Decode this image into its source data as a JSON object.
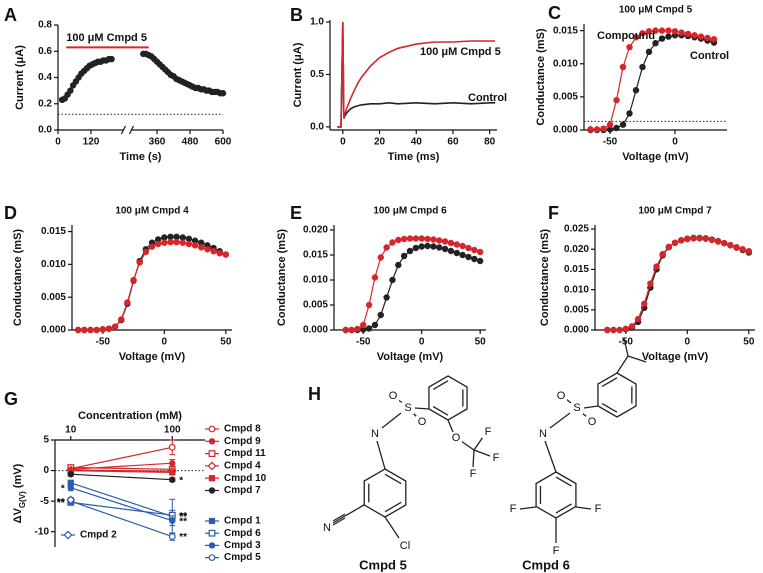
{
  "chart_data": [
    {
      "panel": "A",
      "type": "scatter",
      "xlabel": "Time (s)",
      "ylabel": "Current (μA)",
      "xbreak": true,
      "x": [
        15,
        25,
        35,
        45,
        55,
        65,
        75,
        85,
        95,
        105,
        115,
        125,
        135,
        145,
        155,
        165,
        175,
        185,
        195,
        310,
        320,
        330,
        340,
        350,
        360,
        370,
        380,
        390,
        400,
        410,
        420,
        430,
        440,
        450,
        460,
        470,
        480,
        490,
        500,
        510,
        520,
        530,
        540,
        550,
        560,
        570,
        580,
        590,
        600
      ],
      "series": [
        {
          "color": "#222222",
          "values": [
            0.23,
            0.24,
            0.27,
            0.3,
            0.34,
            0.37,
            0.4,
            0.43,
            0.45,
            0.47,
            0.49,
            0.5,
            0.51,
            0.52,
            0.52,
            0.53,
            0.53,
            0.54,
            0.54,
            0.58,
            0.58,
            0.57,
            0.56,
            0.54,
            0.52,
            0.5,
            0.48,
            0.46,
            0.44,
            0.42,
            0.41,
            0.39,
            0.38,
            0.37,
            0.36,
            0.35,
            0.34,
            0.33,
            0.32,
            0.32,
            0.31,
            0.31,
            0.3,
            0.3,
            0.29,
            0.29,
            0.29,
            0.28,
            0.28
          ]
        }
      ],
      "xlim": [
        0,
        600
      ],
      "xticks": [
        0,
        120,
        360,
        480,
        600
      ],
      "ylim": [
        0,
        0.8
      ],
      "yticks": [
        {
          "value": 0,
          "label": "0.0"
        },
        0.2,
        0.4,
        0.6,
        0.8
      ],
      "hline": 0.12,
      "annotation": {
        "text": "100 μM Cmpd 5",
        "x": [
          30,
          330
        ],
        "y": 0.63,
        "color": "#d7262b"
      }
    },
    {
      "panel": "B",
      "type": "line",
      "xlabel": "Time (ms)",
      "ylabel": "Current (μA)",
      "x": [
        -3,
        -1,
        0,
        0.5,
        1,
        2,
        4,
        6,
        8,
        10,
        15,
        20,
        25,
        30,
        40,
        50,
        60,
        70,
        80,
        83
      ],
      "series": [
        {
          "name": "Control",
          "color": "#222222",
          "values": [
            0,
            0,
            1.0,
            0.08,
            0.1,
            0.13,
            0.17,
            0.19,
            0.2,
            0.21,
            0.22,
            0.22,
            0.23,
            0.22,
            0.23,
            0.22,
            0.23,
            0.22,
            0.23,
            0.23
          ]
        },
        {
          "name": "100 μM Cmpd 5",
          "color": "#d7262b",
          "values": [
            0,
            0,
            1.0,
            0.08,
            0.12,
            0.17,
            0.26,
            0.34,
            0.41,
            0.47,
            0.58,
            0.66,
            0.71,
            0.75,
            0.79,
            0.81,
            0.81,
            0.82,
            0.82,
            0.82
          ]
        }
      ],
      "xlim": [
        -7,
        84
      ],
      "xticks": [
        0,
        20,
        40,
        60,
        80
      ],
      "ylim": [
        -0.03,
        1.02
      ],
      "yticks": [
        {
          "value": 0,
          "label": "0.0"
        },
        0.5,
        {
          "value": 1,
          "label": "1.0"
        }
      ]
    },
    {
      "panel": "C",
      "type": "scatter",
      "connect": true,
      "title": "100 μM Cmpd 5",
      "xlabel": "Voltage (mV)",
      "ylabel": "Conductance (mS)",
      "x": [
        -65,
        -60,
        -55,
        -50,
        -45,
        -40,
        -35,
        -30,
        -25,
        -20,
        -15,
        -10,
        -5,
        0,
        5,
        10,
        15,
        20,
        25,
        30
      ],
      "series": [
        {
          "name": "Control",
          "color": "#222222",
          "values": [
            0,
            0,
            0,
            0.0001,
            0.0003,
            0.0008,
            0.0025,
            0.006,
            0.0095,
            0.0118,
            0.0131,
            0.0138,
            0.0141,
            0.0143,
            0.0143,
            0.0142,
            0.014,
            0.0138,
            0.0135,
            0.0132
          ]
        },
        {
          "name": "Compound",
          "color": "#d7262b",
          "values": [
            0.0001,
            0.0001,
            0.0002,
            0.0008,
            0.0045,
            0.0095,
            0.0125,
            0.014,
            0.0146,
            0.0149,
            0.015,
            0.015,
            0.015,
            0.0149,
            0.0147,
            0.0145,
            0.0143,
            0.0141,
            0.0139,
            0.0137
          ]
        }
      ],
      "xlim": [
        -70,
        40
      ],
      "xticks": [
        -50,
        0
      ],
      "ylim": [
        0,
        0.016
      ],
      "yticks": [
        {
          "value": 0,
          "label": "0.000"
        },
        0.005,
        {
          "value": 0.01,
          "label": "0.010"
        },
        0.015
      ],
      "hline": 0.0013
    },
    {
      "panel": "D",
      "type": "scatter",
      "connect": true,
      "title": "100 μM Cmpd 4",
      "xlabel": "Voltage (mV)",
      "ylabel": "Conductance (mS)",
      "x": [
        -70,
        -65,
        -60,
        -55,
        -50,
        -45,
        -40,
        -35,
        -30,
        -25,
        -20,
        -15,
        -10,
        -5,
        0,
        5,
        10,
        15,
        20,
        25,
        30,
        35,
        40,
        45,
        50
      ],
      "series": [
        {
          "color": "#222222",
          "values": [
            0,
            0,
            0,
            0,
            0.0001,
            0.0002,
            0.0005,
            0.0015,
            0.004,
            0.0075,
            0.0105,
            0.0123,
            0.0133,
            0.0138,
            0.0141,
            0.0142,
            0.0142,
            0.0141,
            0.0139,
            0.0136,
            0.0133,
            0.0129,
            0.0125,
            0.012,
            0.0115
          ]
        },
        {
          "color": "#d7262b",
          "values": [
            0,
            0,
            0,
            0,
            0.0001,
            0.0002,
            0.0005,
            0.0016,
            0.0042,
            0.0076,
            0.0103,
            0.0119,
            0.0127,
            0.0131,
            0.0133,
            0.0134,
            0.0134,
            0.0133,
            0.0131,
            0.0129,
            0.0126,
            0.0123,
            0.012,
            0.0117,
            0.0115
          ]
        }
      ],
      "xlim": [
        -75,
        55
      ],
      "xticks": [
        -50,
        0,
        50
      ],
      "ylim": [
        0,
        0.016
      ],
      "yticks": [
        {
          "value": 0,
          "label": "0.000"
        },
        0.005,
        {
          "value": 0.01,
          "label": "0.010"
        },
        0.015
      ]
    },
    {
      "panel": "E",
      "type": "scatter",
      "connect": true,
      "title": "100 μM Cmpd 6",
      "xlabel": "Voltage (mV)",
      "ylabel": "Conductance (mS)",
      "x": [
        -65,
        -60,
        -55,
        -50,
        -45,
        -40,
        -35,
        -30,
        -25,
        -20,
        -15,
        -10,
        -5,
        0,
        5,
        10,
        15,
        20,
        25,
        30,
        35,
        40,
        45,
        50
      ],
      "series": [
        {
          "color": "#222222",
          "values": [
            0,
            0,
            0,
            0.0001,
            0.0003,
            0.001,
            0.003,
            0.0065,
            0.01,
            0.013,
            0.0148,
            0.0158,
            0.0164,
            0.0167,
            0.0168,
            0.0167,
            0.0165,
            0.0162,
            0.0158,
            0.0154,
            0.015,
            0.0146,
            0.0142,
            0.0138
          ]
        },
        {
          "color": "#d7262b",
          "values": [
            0,
            0,
            0.0002,
            0.001,
            0.005,
            0.0105,
            0.0145,
            0.0165,
            0.0175,
            0.018,
            0.0182,
            0.0183,
            0.0183,
            0.0183,
            0.0182,
            0.0181,
            0.0179,
            0.0177,
            0.0174,
            0.0171,
            0.0168,
            0.0164,
            0.016,
            0.0156
          ]
        }
      ],
      "xlim": [
        -75,
        55
      ],
      "xticks": [
        -50,
        0,
        50
      ],
      "ylim": [
        0,
        0.021
      ],
      "yticks": [
        {
          "value": 0,
          "label": "0.000"
        },
        0.005,
        {
          "value": 0.01,
          "label": "0.010"
        },
        0.015,
        {
          "value": 0.02,
          "label": "0.020"
        }
      ]
    },
    {
      "panel": "F",
      "type": "scatter",
      "connect": true,
      "title": "100 μM Cmpd 7",
      "xlabel": "Voltage (mV)",
      "ylabel": "Conductance (mS)",
      "x": [
        -65,
        -60,
        -55,
        -50,
        -45,
        -40,
        -35,
        -30,
        -25,
        -20,
        -15,
        -10,
        -5,
        0,
        5,
        10,
        15,
        20,
        25,
        30,
        35,
        40,
        45,
        50
      ],
      "series": [
        {
          "color": "#222222",
          "values": [
            0,
            0,
            0,
            0.0002,
            0.0006,
            0.002,
            0.0055,
            0.0105,
            0.015,
            0.0185,
            0.0205,
            0.0216,
            0.0222,
            0.0226,
            0.0228,
            0.0228,
            0.0227,
            0.0224,
            0.022,
            0.0215,
            0.021,
            0.0204,
            0.0198,
            0.0192
          ]
        },
        {
          "color": "#d7262b",
          "values": [
            0,
            0,
            0,
            0.0003,
            0.0009,
            0.0027,
            0.0065,
            0.0115,
            0.0157,
            0.0188,
            0.0206,
            0.0216,
            0.0222,
            0.0225,
            0.0227,
            0.0227,
            0.0226,
            0.0223,
            0.0219,
            0.0215,
            0.021,
            0.0205,
            0.02,
            0.0195
          ]
        }
      ],
      "xlim": [
        -75,
        55
      ],
      "xticks": [
        -50,
        0,
        50
      ],
      "ylim": [
        0,
        0.026
      ],
      "yticks": [
        {
          "value": 0,
          "label": "0.000"
        },
        0.005,
        {
          "value": 0.01,
          "label": "0.010"
        },
        0.015,
        {
          "value": 0.02,
          "label": "0.020"
        },
        0.025
      ]
    },
    {
      "panel": "G",
      "type": "scatter",
      "connect": true,
      "xscale": "log",
      "xaxis": "top",
      "legend": true,
      "xlabel": "Concentration (mM)",
      "ylabel": {
        "main": "ΔV",
        "sub": "G(V)",
        "unit": " (mV)"
      },
      "series": [
        {
          "name": "Cmpd 8",
          "color": "#d7262b",
          "marker": "circle-open",
          "x": [
            10,
            100
          ],
          "values": [
            0.3,
            3.8
          ],
          "errors": [
            0.5,
            1.2
          ]
        },
        {
          "name": "Cmpd 9",
          "color": "#d7262b",
          "marker": "circle",
          "x": [
            10,
            100
          ],
          "values": [
            0.2,
            1.2
          ],
          "errors": [
            0.4,
            0.6
          ]
        },
        {
          "name": "Cmpd 11",
          "color": "#d7262b",
          "marker": "square-open",
          "x": [
            10,
            100
          ],
          "values": [
            0.5,
            0.2
          ],
          "errors": [
            0.3,
            0.4
          ]
        },
        {
          "name": "Cmpd 4",
          "color": "#d7262b",
          "marker": "diamond-open",
          "x": [
            10,
            100
          ],
          "values": [
            0.1,
            -0.1
          ],
          "errors": [
            0.3,
            0.3
          ]
        },
        {
          "name": "Cmpd 10",
          "color": "#d7262b",
          "marker": "square",
          "x": [
            10,
            100
          ],
          "values": [
            0.0,
            -0.3
          ],
          "errors": [
            0.3,
            0.3
          ]
        },
        {
          "name": "Cmpd 7",
          "color": "#222222",
          "marker": "circle",
          "x": [
            10,
            100
          ],
          "values": [
            -0.6,
            -1.5
          ],
          "errors": [
            0.3,
            0.3
          ],
          "sig": [
            null,
            "*"
          ]
        },
        {
          "name": "Cmpd 1",
          "color": "#2a5db0",
          "marker": "square",
          "x": [
            10,
            100
          ],
          "values": [
            -2.0,
            -7.5
          ],
          "errors": [
            0.4,
            2.8
          ],
          "sig": [
            null,
            "**"
          ]
        },
        {
          "name": "Cmpd 6",
          "color": "#2a5db0",
          "marker": "square-open",
          "x": [
            10,
            100
          ],
          "values": [
            -5.2,
            -7.3
          ],
          "errors": [
            0.4,
            0.8
          ],
          "sig": [
            "**",
            "**"
          ]
        },
        {
          "name": "Cmpd 3",
          "color": "#2a5db0",
          "marker": "circle",
          "x": [
            10,
            100
          ],
          "values": [
            -2.8,
            -8.2
          ],
          "errors": [
            0.5,
            0.8
          ],
          "sig": [
            "*",
            "**"
          ]
        },
        {
          "name": "Cmpd 5",
          "color": "#2a5db0",
          "marker": "circle-open",
          "x": [
            10,
            100
          ],
          "values": [
            -5.0,
            -10.8
          ],
          "errors": [
            0.5,
            0.6
          ],
          "sig": [
            "**",
            "**"
          ]
        },
        {
          "name": "Cmpd 2",
          "color": "#2a5db0",
          "marker": "diamond-open",
          "x": [
            10
          ],
          "values": [
            -4.8
          ],
          "errors": [
            0.4
          ]
        }
      ],
      "xlim": [
        7,
        210
      ],
      "xticks": [
        10,
        100
      ],
      "ylim": [
        -12.5,
        5
      ],
      "yticks": [
        5,
        0,
        -5,
        -10
      ],
      "hline": 0
    }
  ],
  "structures": {
    "panel": "H",
    "compounds": [
      {
        "name": "Cmpd 5",
        "atoms": [
          "N",
          "S",
          "O",
          "O",
          "O",
          "F",
          "F",
          "F",
          "N",
          "Cl"
        ]
      },
      {
        "name": "Cmpd 6",
        "atoms": [
          "N",
          "S",
          "O",
          "O",
          "F",
          "F",
          "F"
        ]
      }
    ]
  }
}
